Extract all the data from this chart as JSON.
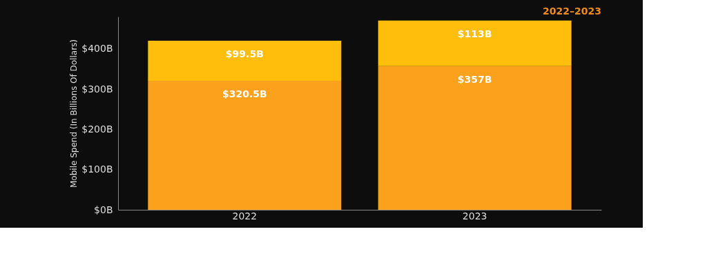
{
  "chart_data": {
    "type": "bar",
    "title": "2022–2023",
    "ylabel": "Mobile Spend (In Billions Of Dollars)",
    "categories": [
      "2022",
      "2023"
    ],
    "stacked": true,
    "series": [
      {
        "color": "#fba11c",
        "values": [
          320.5,
          357
        ],
        "value_labels": [
          "$320.5B",
          "$357B"
        ]
      },
      {
        "color": "#ffbe0b",
        "values": [
          99.5,
          113
        ],
        "value_labels": [
          "$99.5B",
          "$113B"
        ]
      }
    ],
    "ylim": [
      0,
      480
    ],
    "yticks": [
      {
        "value": 0,
        "label": "$0B"
      },
      {
        "value": 100,
        "label": "$100B"
      },
      {
        "value": 200,
        "label": "$200B"
      },
      {
        "value": 300,
        "label": "$300B"
      },
      {
        "value": 400,
        "label": "$400B"
      }
    ],
    "grid": false,
    "legend": false
  }
}
